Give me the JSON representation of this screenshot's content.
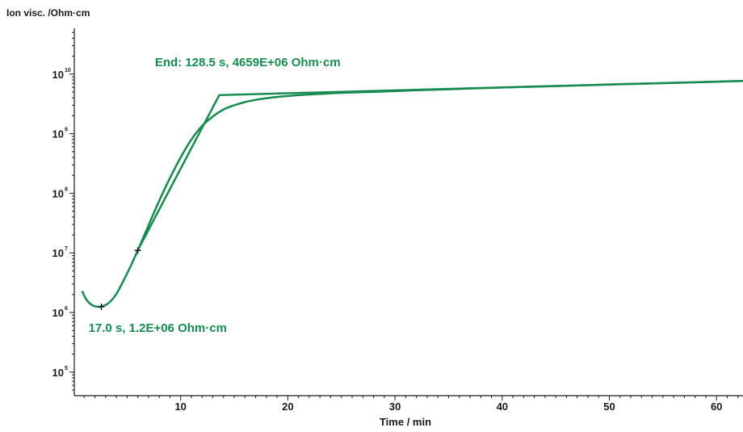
{
  "chart_data": {
    "type": "line",
    "ylabel": "Ion visc. /Ohm·cm",
    "xlabel": "Time / min",
    "y_scale": "log",
    "xlim": [
      0,
      62.5
    ],
    "ylim": [
      10,
      10000000000
    ],
    "x_ticks": [
      10,
      20,
      30,
      40,
      50,
      60
    ],
    "y_ticks": [
      {
        "base": "10",
        "exp": "5"
      },
      {
        "base": "10",
        "exp": "6"
      },
      {
        "base": "10",
        "exp": "7"
      },
      {
        "base": "10",
        "exp": "8"
      },
      {
        "base": "10",
        "exp": "9"
      },
      {
        "base": "10",
        "exp": "10"
      }
    ],
    "series": [
      {
        "x": [
          0.8,
          1.2,
          1.7,
          2.2,
          2.7,
          3.3,
          4.0,
          5.0,
          6.0,
          7.0,
          8.0,
          9.0,
          10.0,
          11.0,
          12.0,
          13.0,
          14.0,
          15.0,
          16.0,
          17.0,
          18.0,
          20.0,
          22.0,
          25.0,
          28.0,
          32.0,
          36.0,
          40.0,
          45.0,
          50.0,
          55.0,
          60.0,
          62.5
        ],
        "y": [
          2300000,
          1650000,
          1340000,
          1250000,
          1270000,
          1450000,
          2050000,
          4500000,
          11000000,
          29000000,
          75000000,
          180000000,
          400000000,
          800000000,
          1350000000,
          1950000000,
          2550000000,
          3000000000,
          3400000000,
          3700000000,
          3950000000,
          4300000000,
          4550000000,
          4850000000,
          5050000000,
          5350000000,
          5650000000,
          5950000000,
          6300000000,
          6700000000,
          7050000000,
          7450000000,
          7700000000
        ]
      }
    ],
    "tangent_line": {
      "x": [
        6.0,
        13.6,
        62.5
      ],
      "y": [
        11000000,
        4450000000,
        7700000000
      ]
    },
    "markers": [
      {
        "x": 2.6,
        "y": 1250000
      },
      {
        "x": 6.0,
        "y": 11000000
      }
    ],
    "annotations": [
      {
        "text": "End: 128.5 s, 4659E+06 Ohm·cm",
        "x": 7.6,
        "y": 13500000000
      },
      {
        "text": "17.0 s, 1.2E+06 Ohm·cm",
        "x": 1.4,
        "y": 470000
      }
    ],
    "colors": {
      "curve": "#168a4f",
      "annotation": "#168a4f",
      "axis": "#1a1a1a"
    }
  }
}
